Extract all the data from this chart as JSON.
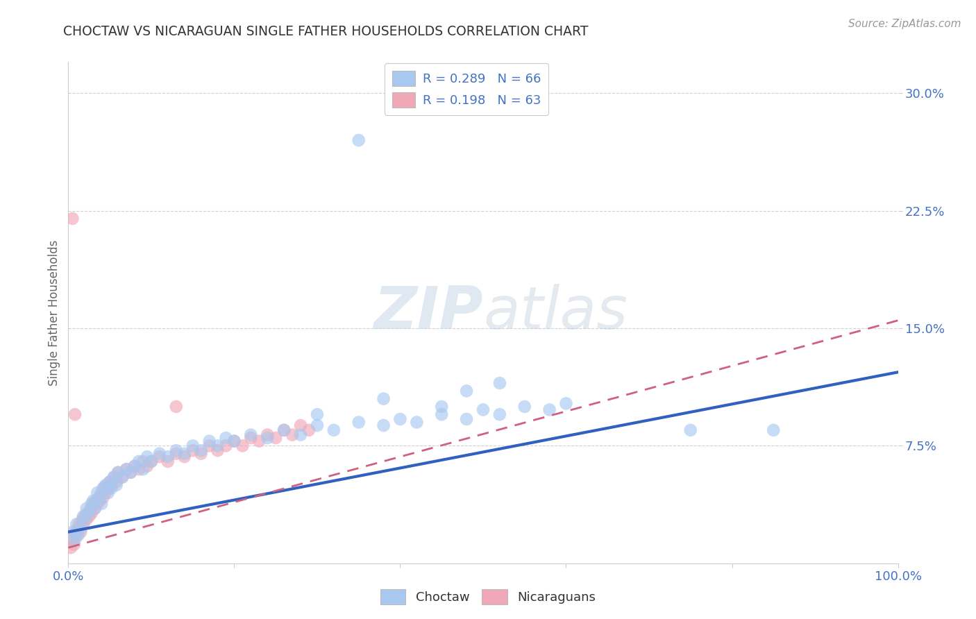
{
  "title": "CHOCTAW VS NICARAGUAN SINGLE FATHER HOUSEHOLDS CORRELATION CHART",
  "source": "Source: ZipAtlas.com",
  "ylabel": "Single Father Households",
  "xlim": [
    0,
    1.0
  ],
  "ylim": [
    0,
    0.32
  ],
  "background_color": "#ffffff",
  "grid_color": "#d0d0d0",
  "choctaw_color": "#a8c8f0",
  "nicaraguan_color": "#f0a8b8",
  "choctaw_line_color": "#3060c0",
  "nicaraguan_line_color": "#d06080",
  "choctaw_R": 0.289,
  "choctaw_N": 66,
  "nicaraguan_R": 0.198,
  "nicaraguan_N": 63,
  "legend_label1": "R = 0.289   N = 66",
  "legend_label2": "R = 0.198   N = 63",
  "choctaw_x": [
    0.005,
    0.008,
    0.01,
    0.012,
    0.015,
    0.018,
    0.02,
    0.022,
    0.025,
    0.028,
    0.03,
    0.032,
    0.035,
    0.038,
    0.04,
    0.042,
    0.045,
    0.048,
    0.05,
    0.052,
    0.055,
    0.058,
    0.06,
    0.065,
    0.07,
    0.075,
    0.08,
    0.085,
    0.09,
    0.095,
    0.1,
    0.11,
    0.12,
    0.13,
    0.14,
    0.15,
    0.16,
    0.17,
    0.18,
    0.19,
    0.2,
    0.22,
    0.24,
    0.26,
    0.28,
    0.3,
    0.32,
    0.35,
    0.38,
    0.4,
    0.42,
    0.45,
    0.48,
    0.5,
    0.52,
    0.55,
    0.58,
    0.6,
    0.35,
    0.75,
    0.85,
    0.48,
    0.52,
    0.45,
    0.38,
    0.3
  ],
  "choctaw_y": [
    0.02,
    0.015,
    0.025,
    0.018,
    0.022,
    0.03,
    0.028,
    0.035,
    0.032,
    0.038,
    0.04,
    0.035,
    0.045,
    0.042,
    0.038,
    0.048,
    0.05,
    0.045,
    0.052,
    0.048,
    0.055,
    0.05,
    0.058,
    0.055,
    0.06,
    0.058,
    0.062,
    0.065,
    0.06,
    0.068,
    0.065,
    0.07,
    0.068,
    0.072,
    0.07,
    0.075,
    0.072,
    0.078,
    0.075,
    0.08,
    0.078,
    0.082,
    0.08,
    0.085,
    0.082,
    0.088,
    0.085,
    0.09,
    0.088,
    0.092,
    0.09,
    0.095,
    0.092,
    0.098,
    0.095,
    0.1,
    0.098,
    0.102,
    0.27,
    0.085,
    0.085,
    0.11,
    0.115,
    0.1,
    0.105,
    0.095
  ],
  "nicaraguan_x": [
    0.003,
    0.005,
    0.007,
    0.008,
    0.01,
    0.012,
    0.013,
    0.015,
    0.017,
    0.018,
    0.02,
    0.022,
    0.023,
    0.025,
    0.027,
    0.028,
    0.03,
    0.032,
    0.033,
    0.035,
    0.037,
    0.038,
    0.04,
    0.042,
    0.043,
    0.045,
    0.047,
    0.048,
    0.05,
    0.052,
    0.055,
    0.058,
    0.06,
    0.065,
    0.07,
    0.075,
    0.08,
    0.085,
    0.09,
    0.095,
    0.1,
    0.11,
    0.12,
    0.13,
    0.14,
    0.15,
    0.16,
    0.17,
    0.18,
    0.19,
    0.2,
    0.21,
    0.22,
    0.23,
    0.24,
    0.25,
    0.26,
    0.27,
    0.28,
    0.29,
    0.005,
    0.008,
    0.13
  ],
  "nicaraguan_y": [
    0.01,
    0.015,
    0.012,
    0.02,
    0.018,
    0.022,
    0.025,
    0.02,
    0.028,
    0.025,
    0.03,
    0.028,
    0.032,
    0.03,
    0.035,
    0.032,
    0.038,
    0.035,
    0.04,
    0.038,
    0.042,
    0.04,
    0.045,
    0.042,
    0.048,
    0.045,
    0.05,
    0.048,
    0.052,
    0.05,
    0.055,
    0.052,
    0.058,
    0.055,
    0.06,
    0.058,
    0.062,
    0.06,
    0.065,
    0.062,
    0.065,
    0.068,
    0.065,
    0.07,
    0.068,
    0.072,
    0.07,
    0.075,
    0.072,
    0.075,
    0.078,
    0.075,
    0.08,
    0.078,
    0.082,
    0.08,
    0.085,
    0.082,
    0.088,
    0.085,
    0.22,
    0.095,
    0.1
  ],
  "choctaw_line_x": [
    0.0,
    1.0
  ],
  "choctaw_line_y": [
    0.02,
    0.122
  ],
  "nicaraguan_line_x": [
    0.0,
    1.0
  ],
  "nicaraguan_line_y": [
    0.01,
    0.155
  ]
}
